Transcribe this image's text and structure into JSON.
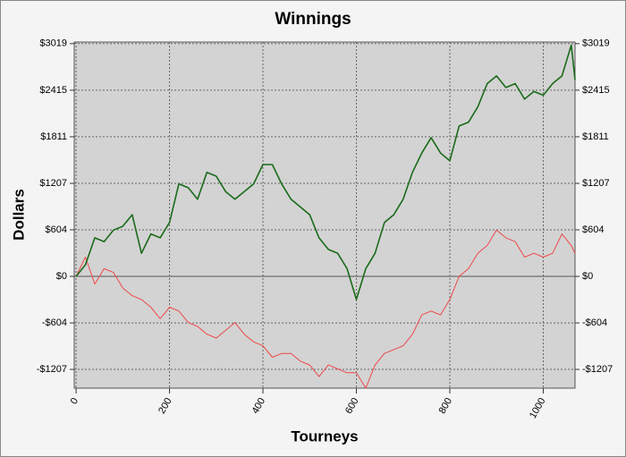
{
  "chart_data": {
    "type": "line",
    "title": "Winnings",
    "x_label": "Tourneys",
    "y_label": "Dollars",
    "x": [
      0,
      20,
      40,
      60,
      80,
      100,
      120,
      140,
      160,
      180,
      200,
      220,
      240,
      260,
      280,
      300,
      320,
      340,
      360,
      380,
      400,
      420,
      440,
      460,
      480,
      500,
      520,
      540,
      560,
      580,
      600,
      620,
      640,
      660,
      680,
      700,
      720,
      740,
      760,
      780,
      800,
      820,
      840,
      860,
      880,
      900,
      920,
      940,
      960,
      980,
      1000,
      1020,
      1040,
      1060,
      1068
    ],
    "series": [
      {
        "color": "#1a6b1a",
        "values": [
          0,
          150,
          500,
          450,
          600,
          650,
          800,
          300,
          550,
          500,
          700,
          1200,
          1150,
          1000,
          1350,
          1300,
          1100,
          1000,
          1100,
          1200,
          1450,
          1450,
          1200,
          1000,
          900,
          800,
          500,
          350,
          300,
          100,
          -300,
          100,
          300,
          700,
          800,
          1000,
          1350,
          1600,
          1800,
          1600,
          1500,
          1950,
          2000,
          2200,
          2500,
          2600,
          2450,
          2500,
          2300,
          2400,
          2350,
          2500,
          2600,
          3000,
          2550
        ]
      },
      {
        "color": "#f04848",
        "values": [
          0,
          250,
          -100,
          100,
          50,
          -150,
          -250,
          -300,
          -400,
          -550,
          -400,
          -450,
          -600,
          -650,
          -750,
          -800,
          -700,
          -600,
          -750,
          -850,
          -900,
          -1050,
          -1000,
          -1000,
          -1100,
          -1150,
          -1300,
          -1150,
          -1200,
          -1250,
          -1250,
          -1450,
          -1150,
          -1000,
          -950,
          -900,
          -750,
          -500,
          -450,
          -500,
          -300,
          0,
          100,
          300,
          400,
          600,
          500,
          450,
          250,
          300,
          250,
          300,
          550,
          400,
          300
        ]
      }
    ],
    "xlim": [
      -4,
      1068
    ],
    "xticks": [
      0,
      200,
      400,
      600,
      800,
      1000
    ],
    "ylim": [
      -1450,
      3040
    ],
    "yticks": [
      {
        "value": 3019,
        "label": "$3019"
      },
      {
        "value": 2415,
        "label": "$2415"
      },
      {
        "value": 1811,
        "label": "$1811"
      },
      {
        "value": 1207,
        "label": "$1207"
      },
      {
        "value": 604,
        "label": "$604"
      },
      {
        "value": 0,
        "label": "$0"
      },
      {
        "value": -604,
        "label": "-$604"
      },
      {
        "value": -1207,
        "label": "-$1207"
      }
    ],
    "grid": true
  }
}
